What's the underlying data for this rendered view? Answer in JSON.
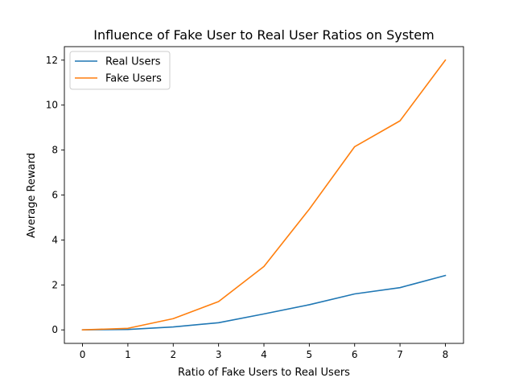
{
  "chart_data": {
    "type": "line",
    "title": "Influence of Fake User to Real User Ratios on System",
    "xlabel": "Ratio of Fake Users to Real Users",
    "ylabel": "Average Reward",
    "x": [
      0,
      1,
      2,
      3,
      4,
      5,
      6,
      7,
      8
    ],
    "xlim": [
      -0.4,
      8.4
    ],
    "ylim": [
      -0.6,
      12.6
    ],
    "xticks": [
      0,
      1,
      2,
      3,
      4,
      5,
      6,
      7,
      8
    ],
    "yticks": [
      0,
      2,
      4,
      6,
      8,
      10,
      12
    ],
    "grid": false,
    "legend_position": "upper-left",
    "series": [
      {
        "name": "Real Users",
        "color": "#1f77b4",
        "values": [
          0.0,
          0.02,
          0.13,
          0.32,
          0.71,
          1.12,
          1.6,
          1.88,
          2.42
        ]
      },
      {
        "name": "Fake Users",
        "color": "#ff7f0e",
        "values": [
          0.0,
          0.07,
          0.5,
          1.26,
          2.82,
          5.37,
          8.15,
          9.3,
          12.0
        ]
      }
    ]
  }
}
